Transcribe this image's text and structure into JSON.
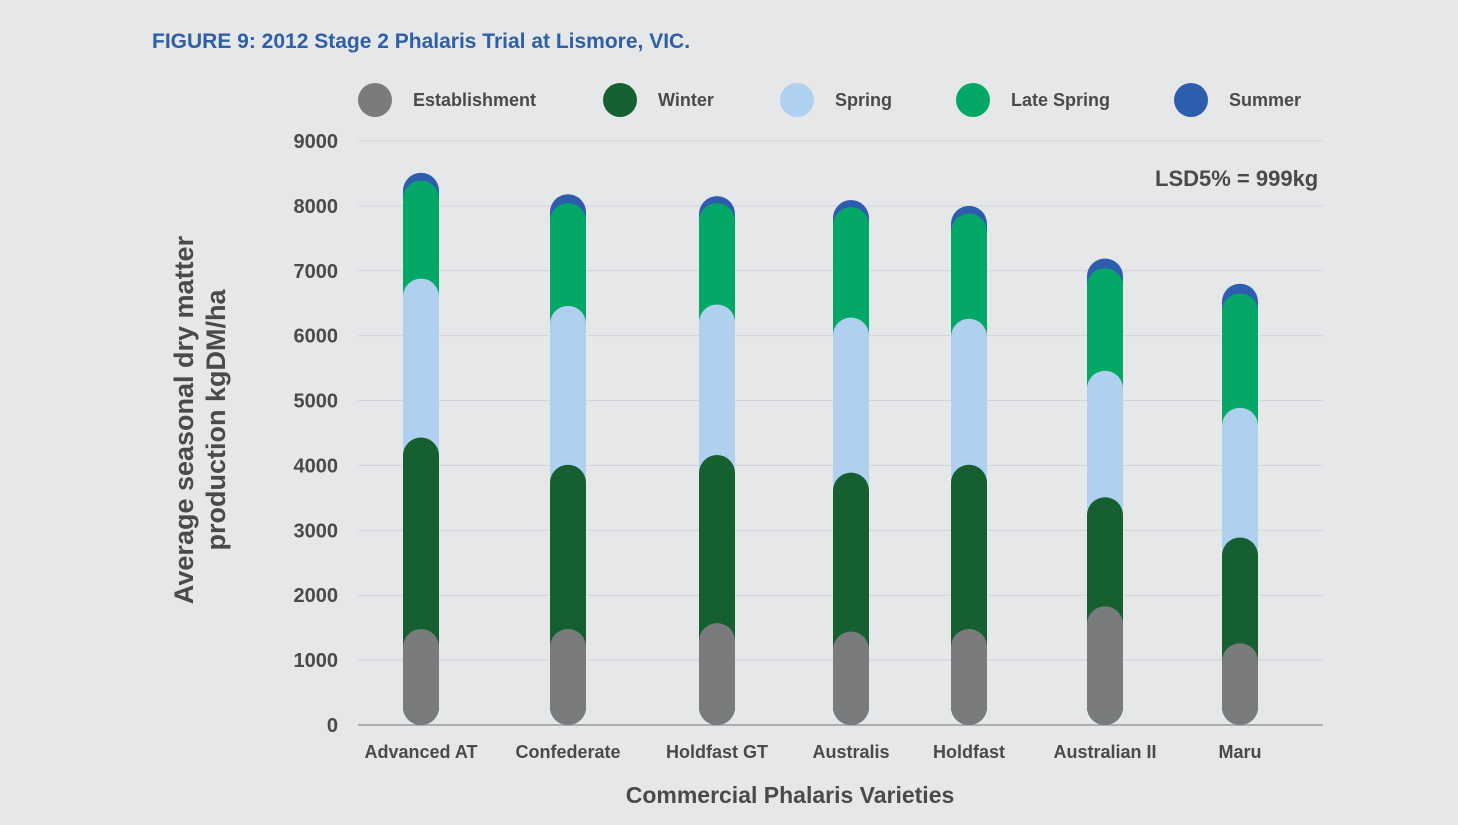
{
  "title": "FIGURE 9: 2012 Stage 2 Phalaris Trial at Lismore, VIC.",
  "annotation": "LSD5% = 999kg",
  "chart_data": {
    "type": "bar",
    "stacked": true,
    "title": "FIGURE 9: 2012 Stage 2 Phalaris Trial at Lismore, VIC.",
    "xlabel": "Commercial Phalaris Varieties",
    "ylabel_lines": [
      "Average seasonal dry matter",
      "production kgDM/ha"
    ],
    "ylim": [
      0,
      9000
    ],
    "yticks": [
      0,
      1000,
      2000,
      3000,
      4000,
      5000,
      6000,
      7000,
      8000,
      9000
    ],
    "grid": true,
    "legend_position": "top",
    "categories": [
      "Advanced AT",
      "Confederate",
      "Holdfast GT",
      "Australis",
      "Holdfast",
      "Australian II",
      "Maru"
    ],
    "series": [
      {
        "name": "Establishment",
        "color": "#7a7b7d",
        "values": [
          1480,
          1480,
          1570,
          1440,
          1480,
          1830,
          1260
        ]
      },
      {
        "name": "Winter",
        "color": "#155f31",
        "values": [
          2950,
          2530,
          2590,
          2450,
          2530,
          1680,
          1630
        ]
      },
      {
        "name": "Spring",
        "color": "#afd0ee",
        "values": [
          2450,
          2450,
          2320,
          2390,
          2250,
          1950,
          2000
        ]
      },
      {
        "name": "Late Spring",
        "color": "#04a866",
        "values": [
          1510,
          1580,
          1560,
          1700,
          1620,
          1580,
          1760
        ]
      },
      {
        "name": "Summer",
        "color": "#2d5dad",
        "values": [
          120,
          140,
          110,
          110,
          120,
          150,
          150
        ]
      }
    ],
    "annotations": [
      "LSD5% = 999kg"
    ]
  }
}
